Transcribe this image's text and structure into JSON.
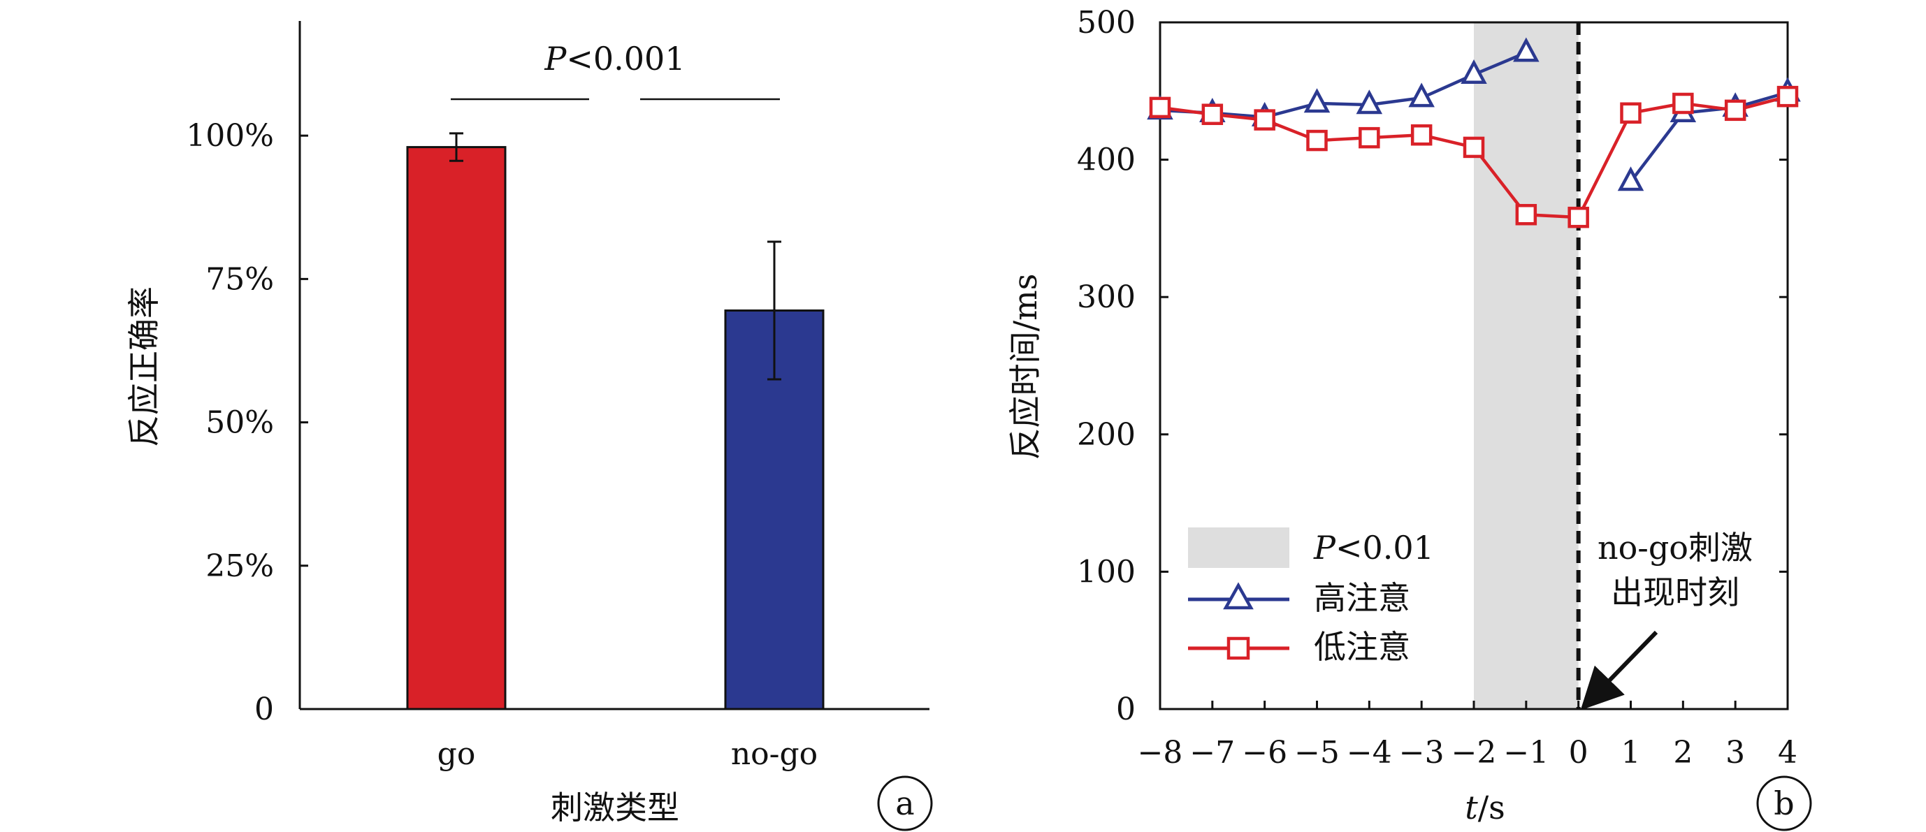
{
  "chart_data": [
    {
      "type": "bar",
      "panel_label": "a",
      "xlabel": "刺激类型",
      "ylabel": "反应正确率",
      "categories": [
        "go",
        "no-go"
      ],
      "values": [
        0.98,
        0.695
      ],
      "error": [
        0.024,
        0.12
      ],
      "colors": [
        "#d92128",
        "#2b3990"
      ],
      "ylim": [
        0,
        1.2
      ],
      "yticks": [
        0,
        0.25,
        0.5,
        0.75,
        1.0
      ],
      "ytick_labels": [
        "0",
        "25%",
        "50%",
        "75%",
        "100%"
      ],
      "annotation": {
        "p_prefix": "P",
        "p_rest": "<0.001"
      },
      "grid": false
    },
    {
      "type": "line",
      "panel_label": "b",
      "xlabel_italic": "t",
      "xlabel_rest": "/s",
      "ylabel": "反应时间/ms",
      "xlim": [
        -8,
        4
      ],
      "ylim": [
        0,
        500
      ],
      "xticks": [
        -8,
        -7,
        -6,
        -5,
        -4,
        -3,
        -2,
        -1,
        0,
        1,
        2,
        3,
        4
      ],
      "xtick_labels": [
        "−8",
        "−7",
        "−6",
        "−5",
        "−4",
        "−3",
        "−2",
        "−1",
        "0",
        "1",
        "2",
        "3",
        "4"
      ],
      "yticks": [
        0,
        100,
        200,
        300,
        400,
        500
      ],
      "ytick_labels": [
        "0",
        "100",
        "200",
        "300",
        "400",
        "500"
      ],
      "shaded_region": {
        "x": [
          -2,
          0
        ],
        "color": "#dedede"
      },
      "marker_line_x": 0,
      "series": [
        {
          "name": "高注意",
          "color": "#2b3990",
          "marker": "triangle",
          "segments": [
            {
              "x": [
                -8,
                -7,
                -6,
                -5,
                -4,
                -3,
                -2,
                -1
              ],
              "y": [
                436,
                434,
                431,
                441,
                440,
                445,
                462,
                478
              ]
            },
            {
              "x": [
                1,
                2,
                3,
                4
              ],
              "y": [
                384,
                434,
                438,
                449
              ]
            }
          ]
        },
        {
          "name": "低注意",
          "color": "#d92128",
          "marker": "square",
          "segments": [
            {
              "x": [
                -8,
                -7,
                -6,
                -5,
                -4,
                -3,
                -2,
                -1,
                0,
                1,
                2,
                3,
                4
              ],
              "y": [
                438,
                433,
                429,
                414,
                416,
                418,
                409,
                360,
                358,
                434,
                441,
                436,
                446
              ]
            }
          ]
        }
      ],
      "legend": {
        "placement": "bottom-left",
        "shade_prefix": "P",
        "shade_rest": "<0.01",
        "high_label": "高注意",
        "low_label": "低注意"
      },
      "callout_lines": [
        "no-go刺激",
        "出现时刻"
      ],
      "grid": false
    }
  ]
}
